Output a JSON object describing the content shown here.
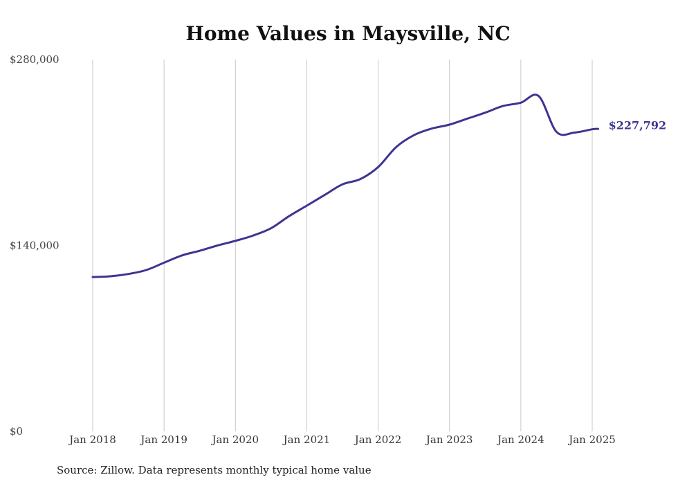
{
  "chart_data": {
    "type": "line",
    "title": "Home Values in Maysville, NC",
    "source_note": "Source: Zillow. Data represents monthly typical home value",
    "ylim": [
      0,
      280000
    ],
    "y_ticks": [
      {
        "value": 0,
        "label": "$0"
      },
      {
        "value": 140000,
        "label": "$140,000"
      },
      {
        "value": 280000,
        "label": "$280,000"
      }
    ],
    "x_ticks": [
      {
        "value": "2018-01",
        "label": "Jan 2018"
      },
      {
        "value": "2019-01",
        "label": "Jan 2019"
      },
      {
        "value": "2020-01",
        "label": "Jan 2020"
      },
      {
        "value": "2021-01",
        "label": "Jan 2021"
      },
      {
        "value": "2022-01",
        "label": "Jan 2022"
      },
      {
        "value": "2023-01",
        "label": "Jan 2023"
      },
      {
        "value": "2024-01",
        "label": "Jan 2024"
      },
      {
        "value": "2025-01",
        "label": "Jan 2025"
      }
    ],
    "grid": "vertical",
    "line_color": "#3d3590",
    "end_label": "$227,792",
    "series": [
      {
        "x": [
          "2018-01",
          "2018-04",
          "2018-07",
          "2018-10",
          "2019-01",
          "2019-04",
          "2019-07",
          "2019-10",
          "2020-01",
          "2020-04",
          "2020-07",
          "2020-10",
          "2021-01",
          "2021-04",
          "2021-07",
          "2021-10",
          "2022-01",
          "2022-04",
          "2022-07",
          "2022-10",
          "2023-01",
          "2023-04",
          "2023-07",
          "2023-10",
          "2024-01",
          "2024-04",
          "2024-07",
          "2024-10",
          "2025-01",
          "2025-02"
        ],
        "values": [
          116200,
          116800,
          118500,
          121500,
          127000,
          132500,
          136000,
          140000,
          143500,
          147500,
          153000,
          162000,
          170000,
          178000,
          186000,
          190000,
          199000,
          214000,
          223000,
          228000,
          231000,
          235500,
          240000,
          245000,
          247500,
          252500,
          225500,
          225000,
          227500,
          227792
        ]
      }
    ]
  }
}
